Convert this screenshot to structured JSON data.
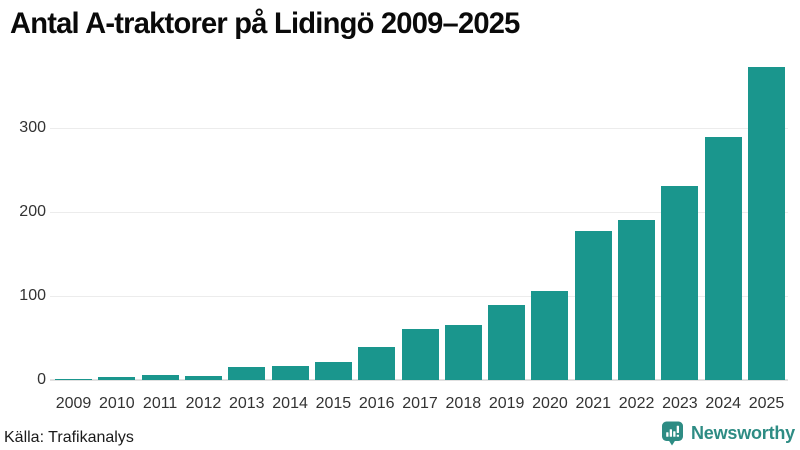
{
  "title": "Antal A-traktorer på Lidingö 2009–2025",
  "source": "Källa: Trafikanalys",
  "branding": {
    "logo_text": "Newsworthy",
    "logo_icon": "bar-chart-speech-bubble-icon"
  },
  "colors": {
    "bar": "#1a968d",
    "grid": "#ececec",
    "baseline": "#e0e0e0",
    "axis_text": "#333333",
    "title_text": "#0a0a0a",
    "brand_teal": "#2e8c84"
  },
  "chart_data": {
    "type": "bar",
    "title": "Antal A-traktorer på Lidingö 2009–2025",
    "categories": [
      "2009",
      "2010",
      "2011",
      "2012",
      "2013",
      "2014",
      "2015",
      "2016",
      "2017",
      "2018",
      "2019",
      "2020",
      "2021",
      "2022",
      "2023",
      "2024",
      "2025"
    ],
    "values": [
      1,
      3,
      6,
      5,
      15,
      17,
      22,
      39,
      61,
      65,
      89,
      106,
      177,
      191,
      231,
      289,
      373
    ],
    "xlabel": "",
    "ylabel": "",
    "yticks": [
      0,
      100,
      200,
      300
    ],
    "ylim": [
      0,
      381
    ],
    "grid": "horizontal-only",
    "legend_position": "none",
    "source": "Källa: Trafikanalys"
  }
}
